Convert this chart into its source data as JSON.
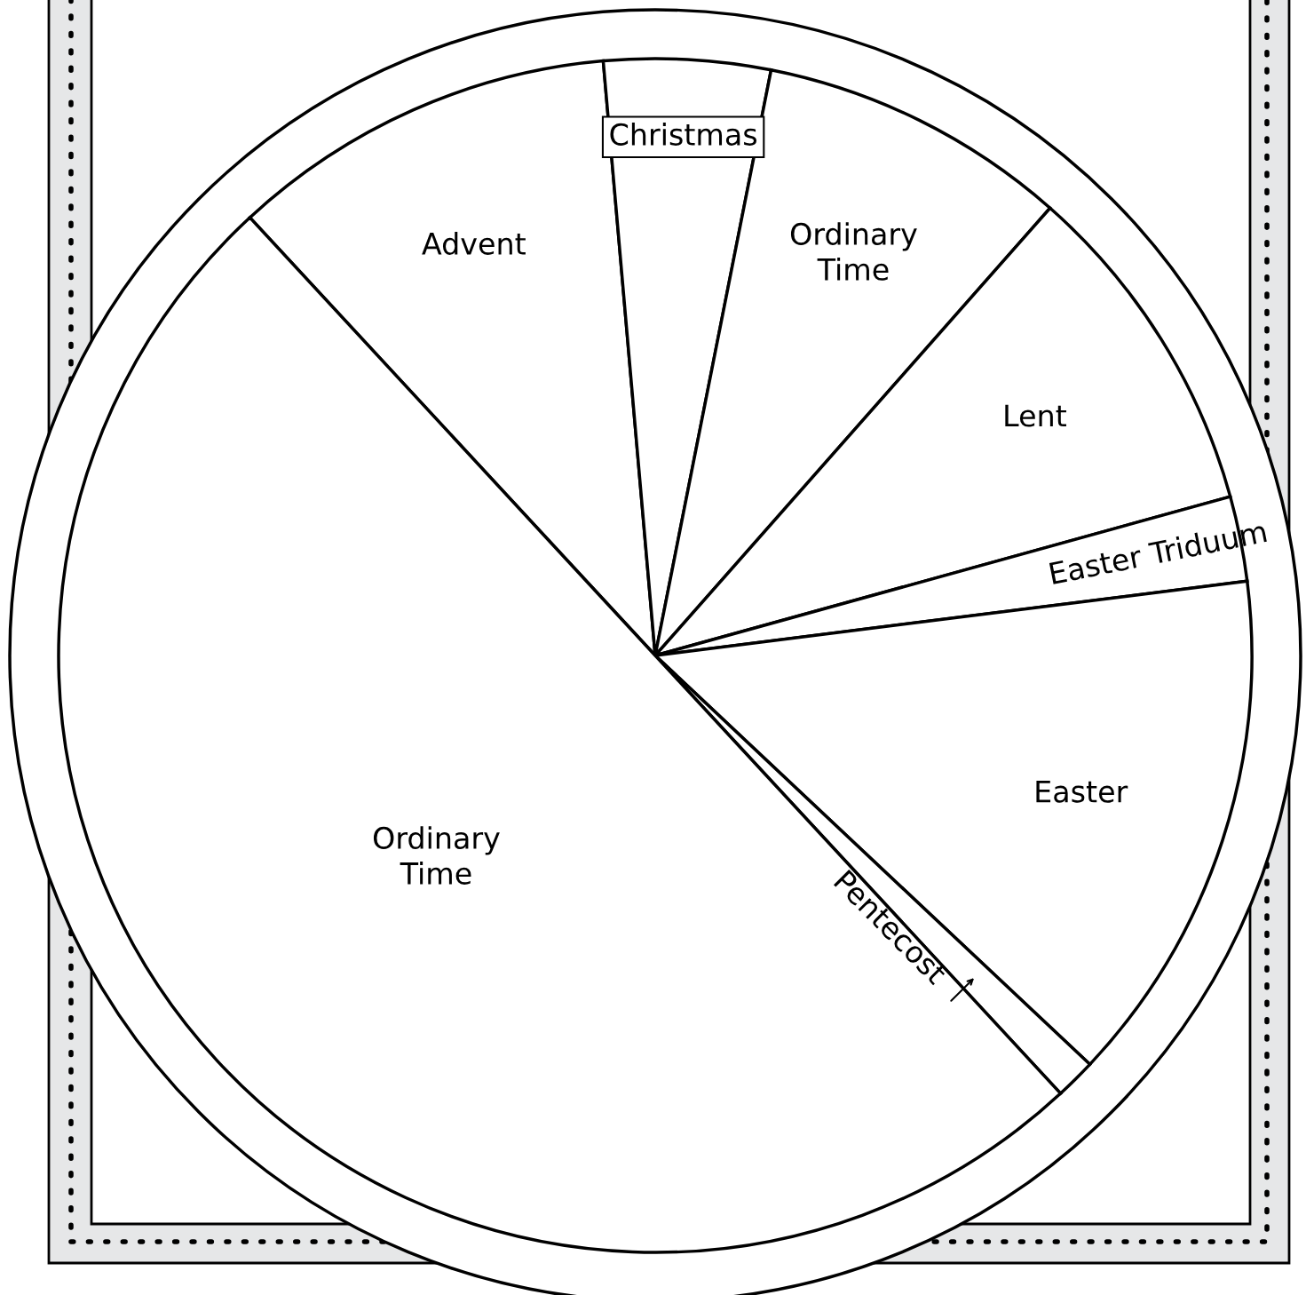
{
  "chart_data": {
    "type": "pie",
    "categories": [
      "Advent",
      "Christmas",
      "Ordinary\nTime",
      "Lent",
      "Easter Triduum",
      "Easter",
      "Pentecost",
      "Ordinary\nTime"
    ],
    "values": [
      10.5,
      4.5,
      8.4,
      9.2,
      2.3,
      14.0,
      1.1,
      50.0
    ],
    "colors": [
      "#ffffff",
      "#ffffff",
      "#ffffff",
      "#ffffff",
      "#ffffff",
      "#ffffff",
      "#ffffff",
      "#ffffff"
    ],
    "legend": false
  }
}
